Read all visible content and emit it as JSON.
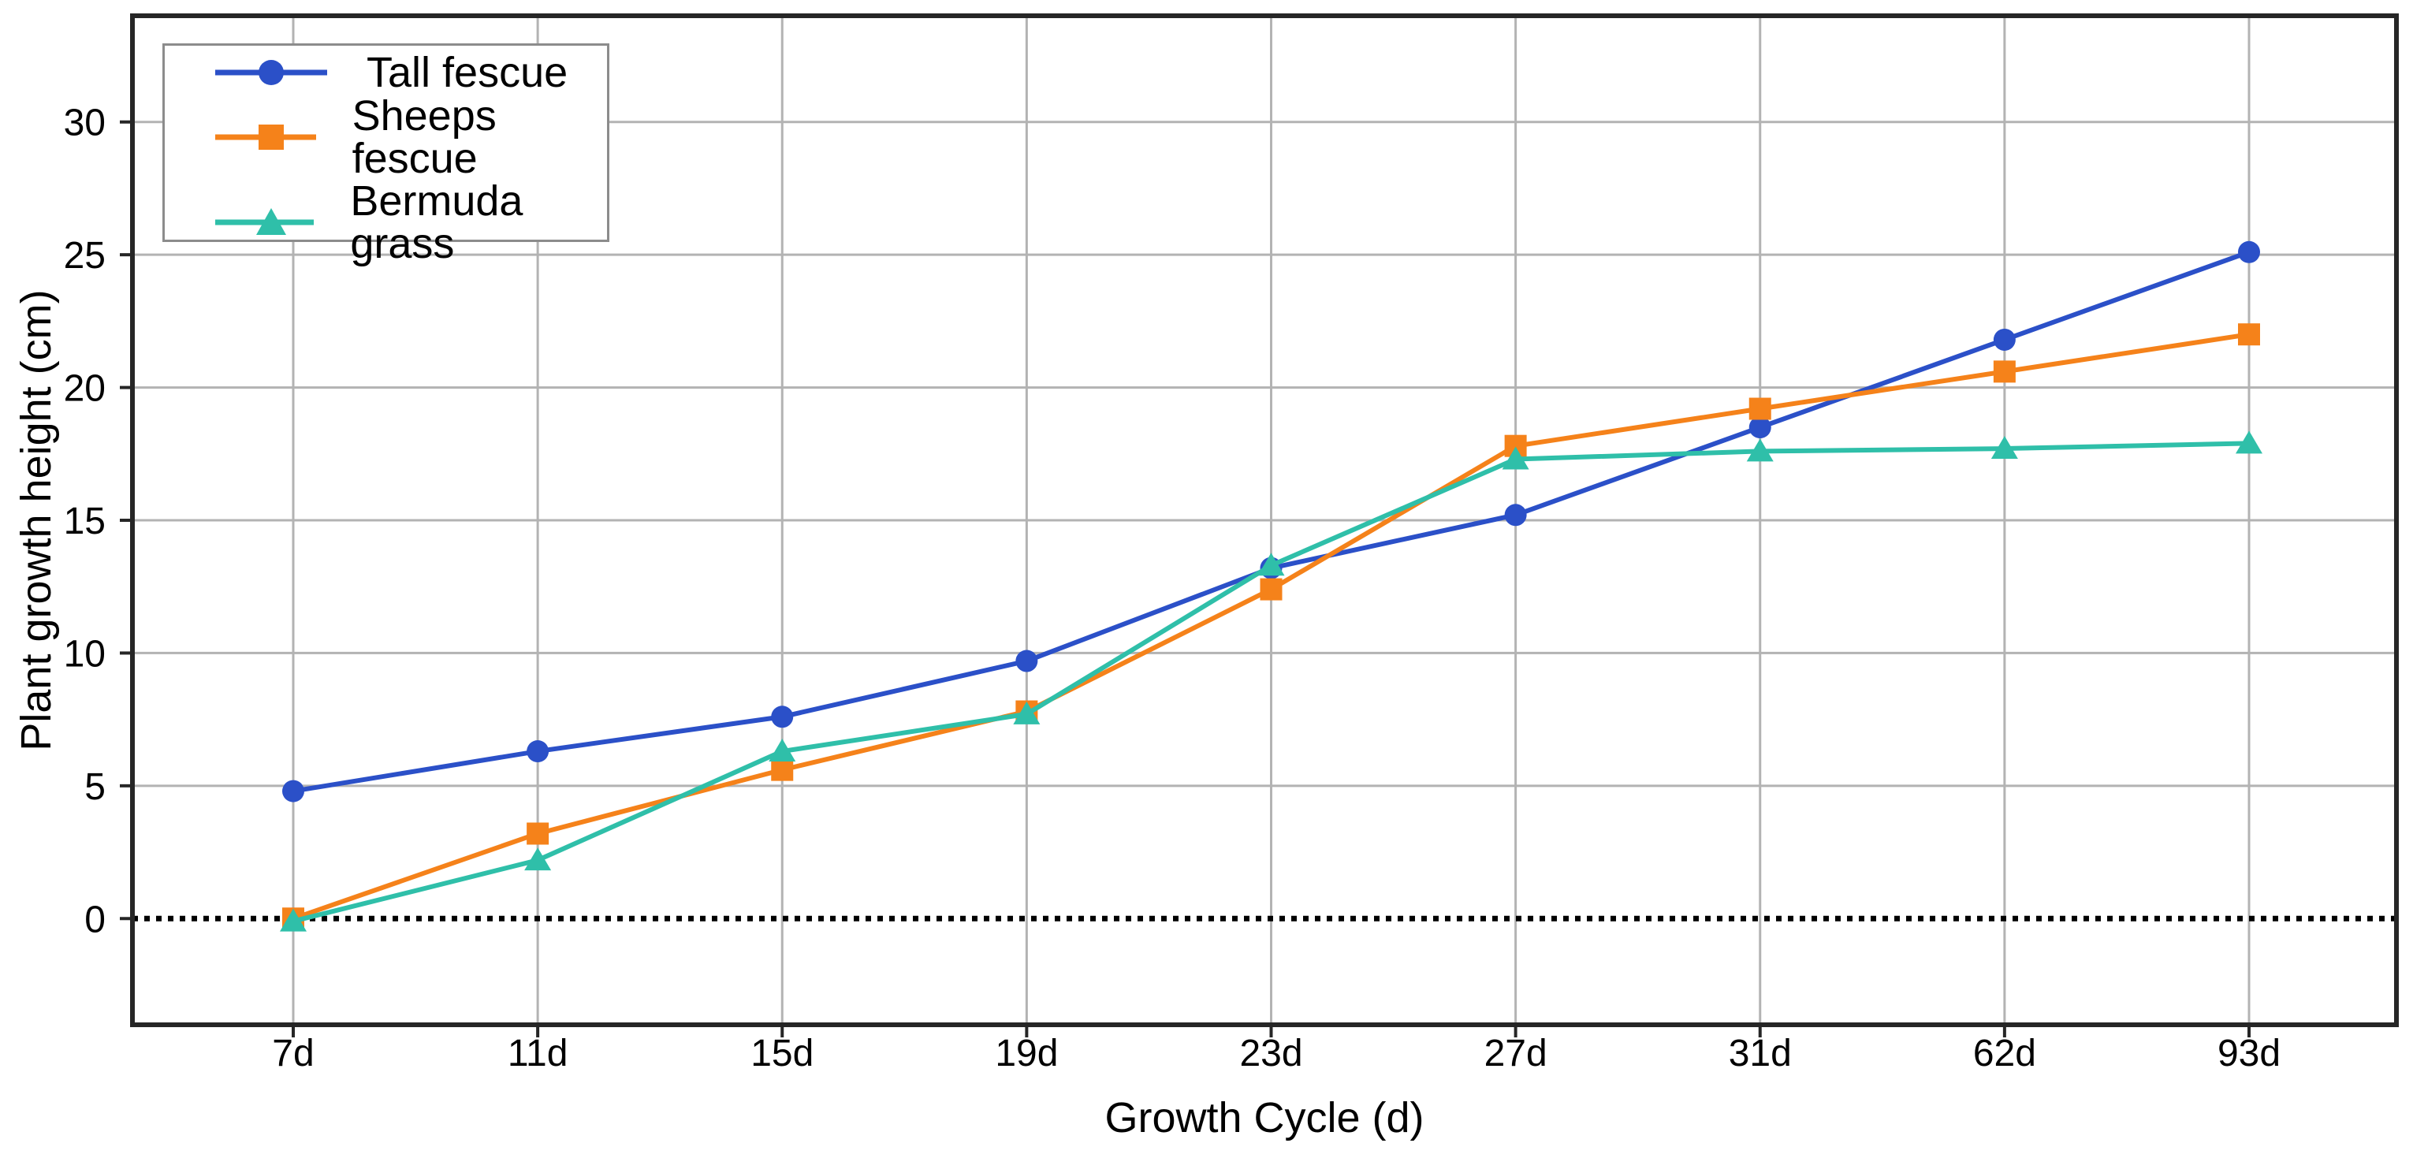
{
  "chart_data": {
    "type": "line",
    "title": "",
    "xlabel": "Growth Cycle (d)",
    "ylabel": "Plant growth height (cm)",
    "categories": [
      "7d",
      "11d",
      "15d",
      "19d",
      "23d",
      "27d",
      "31d",
      "62d",
      "93d"
    ],
    "yticks": [
      0,
      5,
      10,
      15,
      20,
      25,
      30
    ],
    "ylim": [
      -4,
      34
    ],
    "grid": true,
    "legend_position": "upper-left",
    "zero_line": {
      "y": 0,
      "style": "dotted",
      "color": "#000000"
    },
    "grid_color": "#b3b3b3",
    "axis_color": "#262626",
    "tick_label_color": "#000000",
    "series": [
      {
        "name": "Tall fescue",
        "marker": "circle",
        "color": "#2b50c8",
        "values": [
          4.8,
          6.3,
          7.6,
          9.7,
          13.2,
          15.2,
          18.5,
          21.8,
          25.1
        ]
      },
      {
        "name": "Sheeps fescue",
        "marker": "square",
        "color": "#f5821a",
        "values": [
          0.0,
          3.2,
          5.6,
          7.8,
          12.4,
          17.8,
          19.2,
          20.6,
          22.0
        ]
      },
      {
        "name": "Bermuda grass",
        "marker": "triangle",
        "color": "#2fbfa9",
        "values": [
          -0.1,
          2.2,
          6.3,
          7.7,
          13.3,
          17.3,
          17.6,
          17.7,
          17.9
        ]
      }
    ]
  }
}
